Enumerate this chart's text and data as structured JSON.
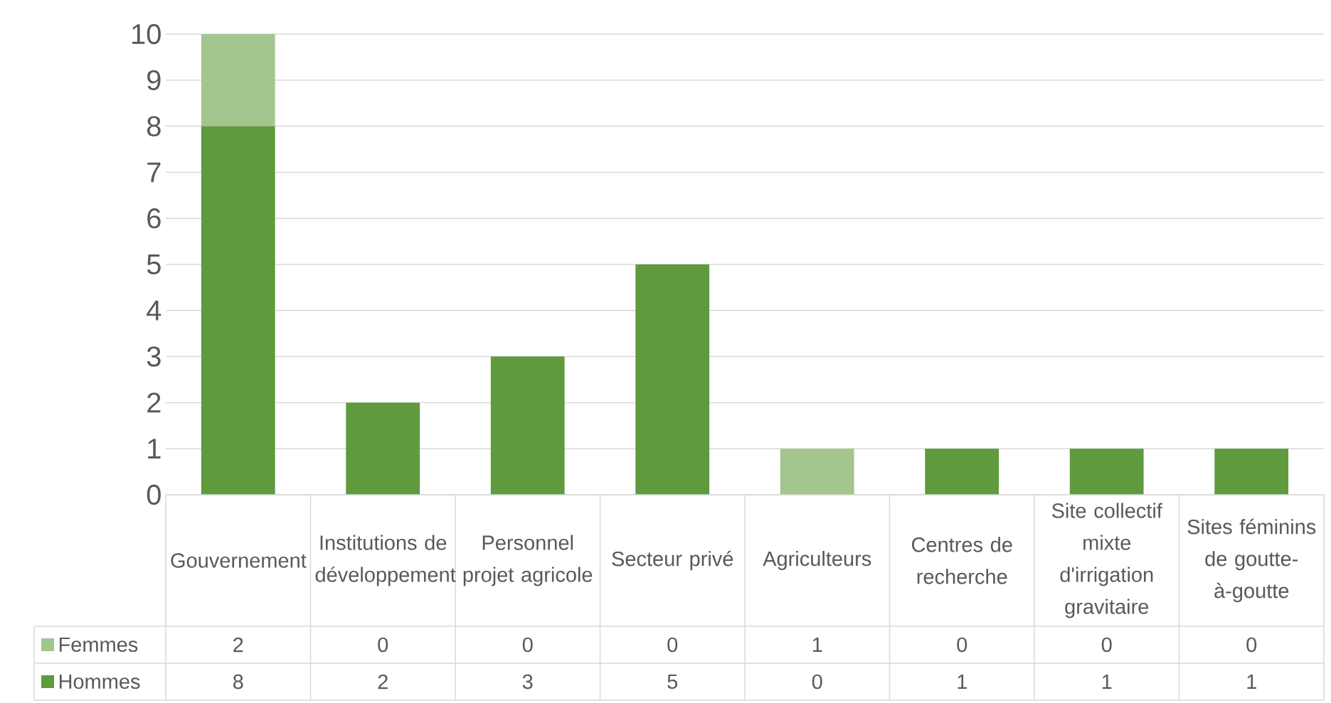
{
  "chart_data": {
    "type": "bar",
    "stacked": true,
    "categories": [
      "Gouvernement",
      "Institutions de développement",
      "Personnel projet agricole",
      "Secteur privé",
      "Agriculteurs",
      "Centres de recherche",
      "Site collectif mixte d'irrigation gravitaire",
      "Sites féminins de goutte-à-goutte"
    ],
    "series": [
      {
        "name": "Hommes",
        "color": "#5f9a3e",
        "values": [
          8,
          2,
          3,
          5,
          0,
          1,
          1,
          1
        ]
      },
      {
        "name": "Femmes",
        "color": "#a3c68e",
        "values": [
          2,
          0,
          0,
          0,
          1,
          0,
          0,
          0
        ]
      }
    ],
    "ylim": [
      0,
      10
    ],
    "yticks": [
      0,
      1,
      2,
      3,
      4,
      5,
      6,
      7,
      8,
      9,
      10
    ],
    "grid": "y",
    "legend": "bottom",
    "data_labels": true
  }
}
